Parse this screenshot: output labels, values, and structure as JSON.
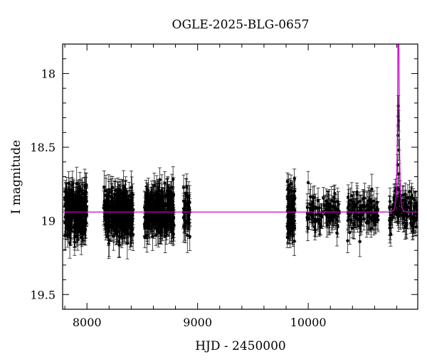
{
  "chart_data": {
    "type": "scatter",
    "title": "OGLE-2025-BLG-0657",
    "xlabel": "HJD - 2450000",
    "ylabel": "I magnitude",
    "xlim": [
      7780,
      10990
    ],
    "ylim": [
      19.6,
      17.8
    ],
    "y_inverted": true,
    "x_ticks": [
      8000,
      9000,
      10000
    ],
    "y_ticks": [
      18,
      18.5,
      19,
      19.5
    ],
    "grid": false,
    "colors": {
      "points": "#000000",
      "model": "#cc00cc",
      "frame": "#000000"
    },
    "baseline_mag": 18.94,
    "seasons": [
      {
        "start": 7800,
        "end": 8000,
        "mean": 18.94,
        "scatter": 0.08,
        "error": 0.09,
        "count": 260
      },
      {
        "start": 8150,
        "end": 8420,
        "mean": 18.94,
        "scatter": 0.08,
        "error": 0.09,
        "count": 300
      },
      {
        "start": 8520,
        "end": 8790,
        "mean": 18.94,
        "scatter": 0.08,
        "error": 0.09,
        "count": 300
      },
      {
        "start": 8870,
        "end": 8930,
        "mean": 18.94,
        "scatter": 0.07,
        "error": 0.09,
        "count": 40
      },
      {
        "start": 9810,
        "end": 9880,
        "mean": 18.94,
        "scatter": 0.09,
        "error": 0.08,
        "count": 90
      },
      {
        "start": 9990,
        "end": 10280,
        "mean": 18.94,
        "scatter": 0.06,
        "error": 0.08,
        "count": 100
      },
      {
        "start": 10350,
        "end": 10640,
        "mean": 18.94,
        "scatter": 0.06,
        "error": 0.08,
        "count": 110
      },
      {
        "start": 10730,
        "end": 10990,
        "mean": 18.94,
        "scatter": 0.06,
        "error": 0.08,
        "count": 110
      }
    ],
    "model": {
      "type": "point-lens",
      "t0": 10815,
      "u0": 0.14,
      "tE": 13,
      "baseline": 18.94,
      "color": "#cc00cc"
    },
    "peak_points": [
      {
        "x": 10803,
        "y": 18.78,
        "err": 0.07
      },
      {
        "x": 10808,
        "y": 18.62,
        "err": 0.07
      },
      {
        "x": 10811,
        "y": 18.42,
        "err": 0.07
      },
      {
        "x": 10813,
        "y": 18.29,
        "err": 0.07
      },
      {
        "x": 10815,
        "y": 18.22,
        "err": 0.07
      },
      {
        "x": 10817,
        "y": 18.32,
        "err": 0.07
      },
      {
        "x": 10819,
        "y": 18.52,
        "err": 0.07
      },
      {
        "x": 10822,
        "y": 18.68,
        "err": 0.07
      },
      {
        "x": 10826,
        "y": 18.82,
        "err": 0.07
      }
    ]
  }
}
